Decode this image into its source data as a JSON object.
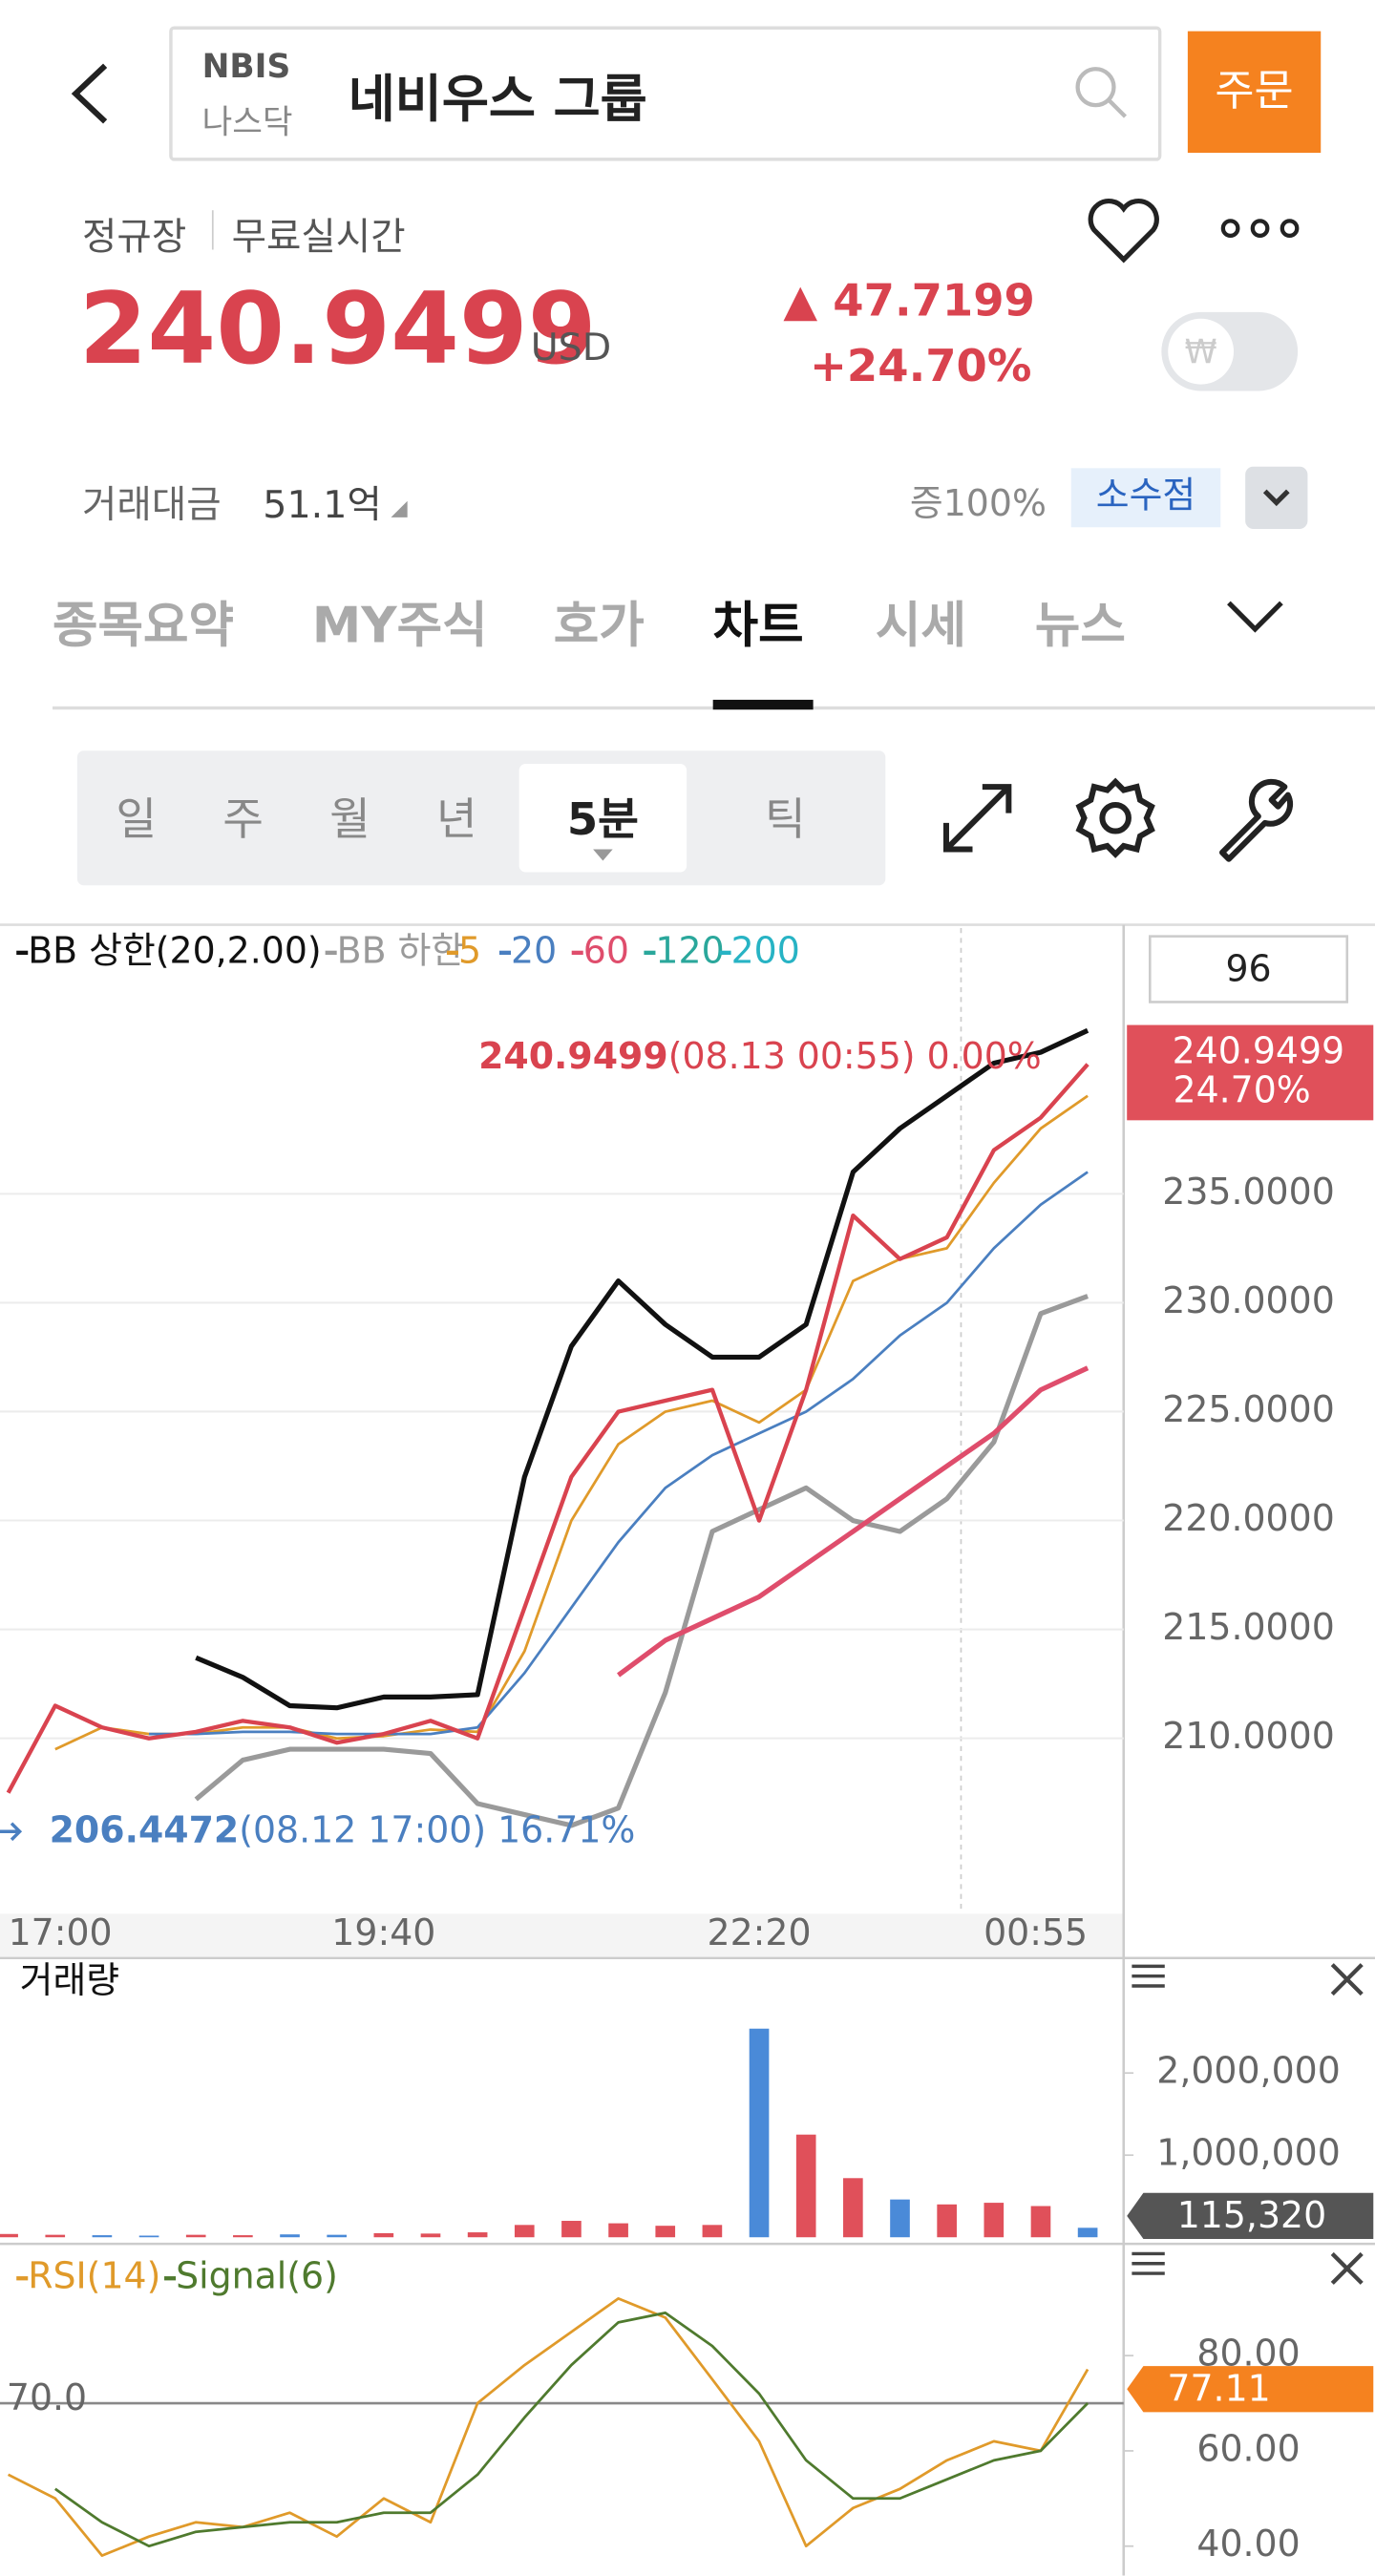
{
  "header": {
    "ticker": "NBIS",
    "market": "나스닥",
    "name": "네비우스 그룹",
    "order_button": "주문"
  },
  "quote": {
    "session": "정규장",
    "realtime": "무료실시간",
    "price": "240.9499",
    "currency": "USD",
    "change": "▲ 47.7199",
    "change_pct": "+24.70%",
    "toggle": "₩",
    "turnover_label": "거래대금",
    "turnover": "51.1억",
    "margin": "증100%",
    "decimal_button": "소수점"
  },
  "tabs": [
    "종목요약",
    "MY주식",
    "호가",
    "차트",
    "시세",
    "뉴스"
  ],
  "periods": [
    "일",
    "주",
    "월",
    "년",
    "5분",
    "틱"
  ],
  "chart_data": [
    {
      "type": "line",
      "categories": [
        "17:00",
        null,
        null,
        null,
        null,
        null,
        null,
        null,
        "19:40",
        null,
        null,
        null,
        null,
        null,
        null,
        null,
        "22:20",
        null,
        null,
        null,
        null,
        null,
        null,
        "00:55"
      ],
      "values": [
        207.5,
        211.5,
        210.5,
        210,
        210.3,
        210.8,
        210.5,
        209.8,
        210.2,
        210.8,
        210,
        216,
        222,
        225,
        225.5,
        226,
        220,
        226,
        234,
        232,
        233,
        237,
        238.5,
        240.9499
      ],
      "color": "#d9434f",
      "series": [
        {
          "name": "BB 상한(20,2.00)",
          "color": "#111111",
          "values": [
            null,
            null,
            null,
            null,
            213.7,
            212.8,
            211.5,
            211.4,
            211.9,
            211.9,
            212,
            222,
            228,
            231,
            229,
            227.5,
            227.5,
            229,
            236,
            238,
            239.5,
            241,
            241.5,
            242.5
          ]
        },
        {
          "name": "BB 하한",
          "color": "#9a9a9a",
          "values": [
            null,
            null,
            null,
            null,
            207.2,
            209,
            209.5,
            209.5,
            209.5,
            209.3,
            207,
            206.5,
            206,
            206.8,
            212.1,
            219.5,
            220.5,
            221.5,
            220,
            219.5,
            221,
            223.6,
            229.5,
            230.3
          ]
        },
        {
          "name": "5",
          "color": "#e09a2a",
          "values": [
            null,
            209.5,
            210.5,
            210.2,
            210.2,
            210.5,
            210.5,
            210,
            210.1,
            210.4,
            210.3,
            214,
            220,
            223.5,
            225,
            225.5,
            224.5,
            226,
            231,
            232,
            232.5,
            235.5,
            238,
            239.5
          ]
        },
        {
          "name": "20",
          "color": "#4a7fc0",
          "values": [
            null,
            null,
            null,
            210.2,
            210.2,
            210.3,
            210.3,
            210.2,
            210.2,
            210.2,
            210.5,
            213,
            216,
            219,
            221.5,
            223,
            224,
            225,
            226.5,
            228.5,
            230,
            232.5,
            234.5,
            236
          ]
        },
        {
          "name": "60",
          "color": "#df4d6c",
          "values": [
            null,
            null,
            null,
            null,
            null,
            null,
            null,
            null,
            null,
            null,
            null,
            null,
            null,
            212.9,
            214.5,
            215.5,
            216.5,
            218,
            219.5,
            221,
            222.5,
            224,
            226,
            227
          ]
        },
        {
          "name": "120",
          "color": "#2aa79b",
          "values": [
            null,
            null,
            null,
            null,
            null,
            null,
            null,
            null,
            null,
            null,
            null,
            null,
            null,
            null,
            null,
            null,
            null,
            null,
            null,
            null,
            null,
            null,
            null,
            null
          ]
        },
        {
          "name": "200",
          "color": "#27b3c4",
          "values": [
            null,
            null,
            null,
            null,
            null,
            null,
            null,
            null,
            null,
            null,
            null,
            null,
            null,
            null,
            null,
            null,
            null,
            null,
            null,
            null,
            null,
            null,
            null,
            null
          ]
        }
      ],
      "ylim": [
        202.1,
        247.2
      ],
      "yticks": [
        {
          "value": 210,
          "label": "210.0000"
        },
        {
          "value": 215,
          "label": "215.0000"
        },
        {
          "value": 220,
          "label": "220.0000"
        },
        {
          "value": 225,
          "label": "225.0000"
        },
        {
          "value": 230,
          "label": "230.0000"
        },
        {
          "value": 235,
          "label": "235.0000"
        }
      ],
      "grid": true,
      "legend_position": "top-left",
      "visible_bars": 96,
      "current_price_label": "240.9499",
      "current_change_label": "24.70%",
      "max_annotation": {
        "price": "240.9499",
        "detail": "(08.13 00:55) 0.00%"
      },
      "min_annotation": {
        "price": "206.4472",
        "detail": "(08.12 17:00) 16.71%"
      }
    },
    {
      "type": "bar",
      "title": "거래량",
      "values": [
        40000,
        30000,
        25000,
        20000,
        30000,
        25000,
        35000,
        30000,
        50000,
        45000,
        60000,
        150000,
        200000,
        170000,
        140000,
        150000,
        2540000,
        1250000,
        720000,
        460000,
        400000,
        420000,
        380000,
        115320
      ],
      "colors": [
        "#e0505a",
        "#e0505a",
        "#4a8ad8",
        "#4a8ad8",
        "#e0505a",
        "#e0505a",
        "#4a8ad8",
        "#4a8ad8",
        "#e0505a",
        "#e0505a",
        "#e0505a",
        "#e0505a",
        "#e0505a",
        "#e0505a",
        "#e0505a",
        "#e0505a",
        "#4a8ad8",
        "#e0505a",
        "#e0505a",
        "#4a8ad8",
        "#e0505a",
        "#e0505a",
        "#e0505a",
        "#4a8ad8"
      ],
      "ylim": [
        0,
        3140000
      ],
      "yticks": [
        {
          "value": 1000000,
          "label": "1,000,000"
        },
        {
          "value": 2000000,
          "label": "2,000,000"
        }
      ],
      "current_label": "115,320"
    },
    {
      "type": "line",
      "series": [
        {
          "name": "RSI(14)",
          "color": "#e09a2a",
          "values": [
            55,
            50,
            38,
            42,
            45,
            44,
            47,
            42,
            50,
            45,
            70,
            78,
            85,
            92,
            88,
            75,
            62,
            40,
            48,
            52,
            58,
            62,
            60,
            77.11
          ]
        },
        {
          "name": "Signal(6)",
          "color": "#4f7a2e",
          "values": [
            null,
            52,
            45,
            40,
            43,
            44,
            45,
            45,
            47,
            47,
            55,
            67,
            78,
            87,
            89,
            82,
            72,
            58,
            50,
            50,
            54,
            58,
            60,
            70
          ]
        }
      ],
      "ylim": [
        33.8,
        101.4
      ],
      "yticks": [
        {
          "value": 40,
          "label": "40.00"
        },
        {
          "value": 60,
          "label": "60.00"
        },
        {
          "value": 80,
          "label": "80.00"
        }
      ],
      "reference_line": {
        "value": 70,
        "label": "70.0"
      },
      "legend_position": "top-left",
      "current_label": "77.11"
    }
  ]
}
